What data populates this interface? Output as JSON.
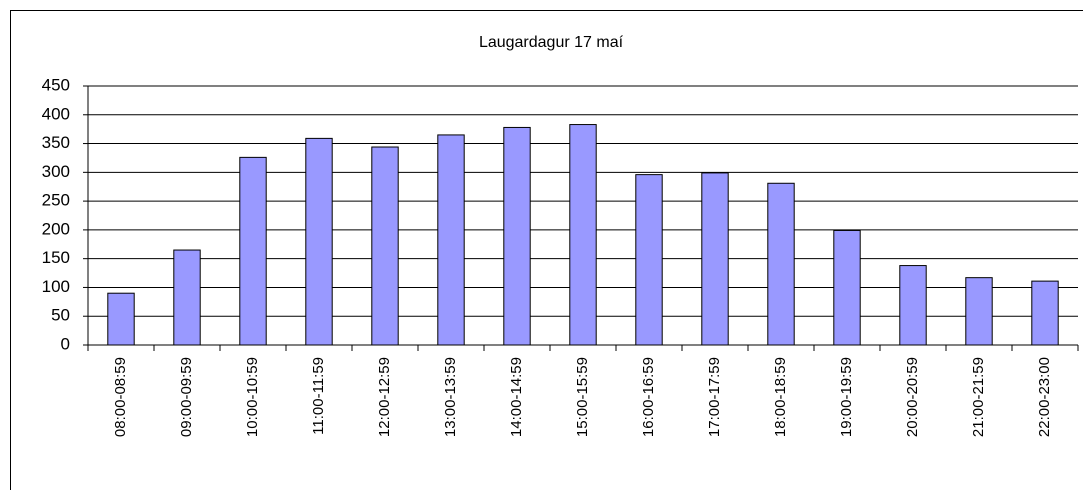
{
  "chart_data": {
    "type": "bar",
    "title": "Laugardagur 17 maí",
    "categories": [
      "08:00-08:59",
      "09:00-09:59",
      "10:00-10:59",
      "11:00-11:59",
      "12:00-12:59",
      "13:00-13:59",
      "14:00-14:59",
      "15:00-15:59",
      "16:00-16:59",
      "17:00-17:59",
      "18:00-18:59",
      "19:00-19:59",
      "20:00-20:59",
      "21:00-21:59",
      "22:00-23:00"
    ],
    "values": [
      90,
      165,
      326,
      359,
      344,
      365,
      378,
      383,
      296,
      299,
      281,
      199,
      138,
      117,
      111
    ],
    "color": "#9999ff",
    "ylim": [
      0,
      450
    ],
    "yticks": [
      0,
      50,
      100,
      150,
      200,
      250,
      300,
      350,
      400,
      450
    ],
    "grid": true
  }
}
